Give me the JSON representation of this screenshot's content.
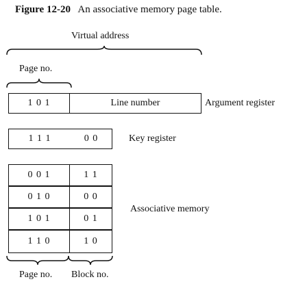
{
  "figure": {
    "number": "Figure 12-20",
    "caption": "An associative memory page table."
  },
  "virtual_address_label": "Virtual address",
  "page_no_label": "Page no.",
  "argument_register": {
    "label": "Argument register",
    "page_bits": "1 0 1",
    "line_field": "Line number"
  },
  "key_register": {
    "label": "Key register",
    "page_bits": "1 1 1",
    "block_bits": "0 0"
  },
  "associative_memory": {
    "label": "Associative memory",
    "rows": [
      {
        "page": "0 0 1",
        "block": "1 1"
      },
      {
        "page": "0 1 0",
        "block": "0 0"
      },
      {
        "page": "1 0 1",
        "block": "0 1"
      },
      {
        "page": "1 1 0",
        "block": "1 0"
      }
    ],
    "bottom_labels": {
      "page": "Page no.",
      "block": "Block no."
    }
  }
}
